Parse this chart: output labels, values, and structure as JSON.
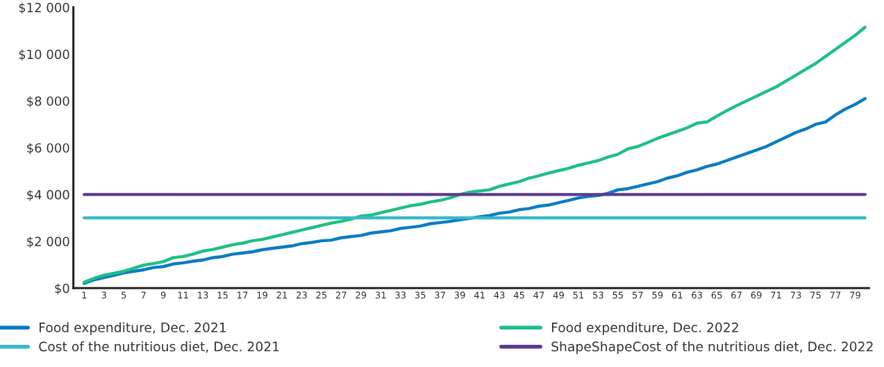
{
  "chart_data": {
    "type": "line",
    "categories": [
      "1",
      null,
      "3",
      null,
      "5",
      null,
      "7",
      null,
      "9",
      null,
      "11",
      null,
      "13",
      null,
      "15",
      null,
      "17",
      null,
      "19",
      null,
      "21",
      null,
      "23",
      null,
      "25",
      null,
      "27",
      null,
      "29",
      null,
      "31",
      null,
      "33",
      null,
      "35",
      null,
      "37",
      null,
      "39",
      null,
      "41",
      null,
      "43",
      null,
      "45",
      null,
      "47",
      null,
      "49",
      null,
      "51",
      null,
      "53",
      null,
      "55",
      null,
      "57",
      null,
      "59",
      null,
      "61",
      null,
      "63",
      null,
      "65",
      null,
      "67",
      null,
      "69",
      null,
      "71",
      null,
      "73",
      null,
      "75",
      null,
      "77",
      null,
      "79",
      null
    ],
    "series": [
      {
        "name": "Food expenditure, Dec. 2021",
        "color": "#0a7cc4",
        "values": [
          200,
          350,
          450,
          550,
          650,
          720,
          780,
          880,
          920,
          1030,
          1080,
          1150,
          1200,
          1300,
          1350,
          1450,
          1500,
          1550,
          1640,
          1700,
          1750,
          1800,
          1900,
          1950,
          2020,
          2050,
          2150,
          2200,
          2250,
          2350,
          2400,
          2450,
          2550,
          2600,
          2650,
          2750,
          2800,
          2850,
          2920,
          2980,
          3050,
          3100,
          3200,
          3250,
          3350,
          3400,
          3500,
          3550,
          3650,
          3750,
          3850,
          3920,
          3960,
          4050,
          4200,
          4250,
          4350,
          4450,
          4550,
          4700,
          4800,
          4950,
          5050,
          5200,
          5300,
          5450,
          5600,
          5750,
          5900,
          6050,
          6250,
          6450,
          6650,
          6800,
          7000,
          7100,
          7400,
          7650,
          7850,
          8100
        ]
      },
      {
        "name": "Food expenditure, Dec. 2022",
        "color": "#1fbf84",
        "values": [
          250,
          420,
          550,
          630,
          720,
          850,
          980,
          1050,
          1130,
          1300,
          1350,
          1450,
          1580,
          1650,
          1750,
          1850,
          1920,
          2020,
          2080,
          2180,
          2280,
          2380,
          2480,
          2580,
          2680,
          2780,
          2850,
          2950,
          3080,
          3120,
          3220,
          3320,
          3420,
          3520,
          3580,
          3680,
          3750,
          3850,
          4000,
          4100,
          4150,
          4200,
          4350,
          4450,
          4550,
          4700,
          4800,
          4920,
          5020,
          5120,
          5250,
          5350,
          5450,
          5600,
          5720,
          5950,
          6050,
          6220,
          6400,
          6550,
          6700,
          6850,
          7050,
          7100,
          7350,
          7580,
          7800,
          8000,
          8200,
          8400,
          8600,
          8850,
          9100,
          9350,
          9600,
          9900,
          10200,
          10500,
          10800,
          11150
        ]
      },
      {
        "name": "Cost of the nutritious diet, Dec. 2021",
        "color": "#36b9cc",
        "values": [
          3000,
          3000,
          3000,
          3000,
          3000,
          3000,
          3000,
          3000,
          3000,
          3000,
          3000,
          3000,
          3000,
          3000,
          3000,
          3000,
          3000,
          3000,
          3000,
          3000,
          3000,
          3000,
          3000,
          3000,
          3000,
          3000,
          3000,
          3000,
          3000,
          3000,
          3000,
          3000,
          3000,
          3000,
          3000,
          3000,
          3000,
          3000,
          3000,
          3000,
          3000,
          3000,
          3000,
          3000,
          3000,
          3000,
          3000,
          3000,
          3000,
          3000,
          3000,
          3000,
          3000,
          3000,
          3000,
          3000,
          3000,
          3000,
          3000,
          3000,
          3000,
          3000,
          3000,
          3000,
          3000,
          3000,
          3000,
          3000,
          3000,
          3000,
          3000,
          3000,
          3000,
          3000,
          3000,
          3000,
          3000,
          3000,
          3000,
          3000
        ]
      },
      {
        "name": "ShapeShapeCost of the nutritious diet, Dec. 2022",
        "color": "#5b3a8c",
        "values": [
          4000,
          4000,
          4000,
          4000,
          4000,
          4000,
          4000,
          4000,
          4000,
          4000,
          4000,
          4000,
          4000,
          4000,
          4000,
          4000,
          4000,
          4000,
          4000,
          4000,
          4000,
          4000,
          4000,
          4000,
          4000,
          4000,
          4000,
          4000,
          4000,
          4000,
          4000,
          4000,
          4000,
          4000,
          4000,
          4000,
          4000,
          4000,
          4000,
          4000,
          4000,
          4000,
          4000,
          4000,
          4000,
          4000,
          4000,
          4000,
          4000,
          4000,
          4000,
          4000,
          4000,
          4000,
          4000,
          4000,
          4000,
          4000,
          4000,
          4000,
          4000,
          4000,
          4000,
          4000,
          4000,
          4000,
          4000,
          4000,
          4000,
          4000,
          4000,
          4000,
          4000,
          4000,
          4000,
          4000,
          4000,
          4000,
          4000,
          4000
        ]
      }
    ],
    "ylim": [
      0,
      12000
    ],
    "yticks": [
      {
        "value": 0,
        "label": "$0"
      },
      {
        "value": 2000,
        "label": "$2 000"
      },
      {
        "value": 4000,
        "label": "$4 000"
      },
      {
        "value": 6000,
        "label": "$6 000"
      },
      {
        "value": 8000,
        "label": "$8 000"
      },
      {
        "value": 10000,
        "label": "$10 000"
      },
      {
        "value": 12000,
        "label": "$12 000"
      }
    ],
    "legend": "bottom",
    "grid": false,
    "marker": "none",
    "line_style": "solid"
  }
}
